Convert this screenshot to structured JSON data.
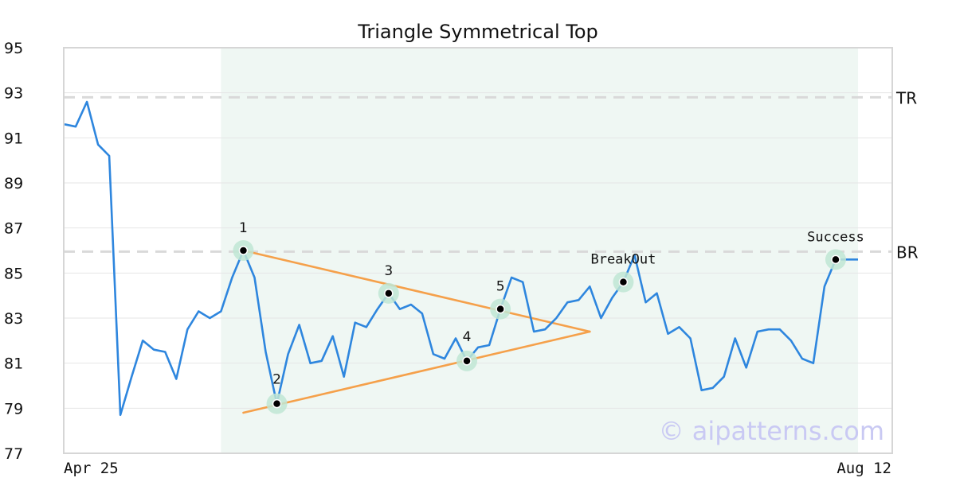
{
  "chart_data": {
    "type": "line",
    "title": "Triangle Symmetrical Top",
    "ylim": [
      77,
      95
    ],
    "yticks": [
      "77",
      "79",
      "81",
      "83",
      "85",
      "87",
      "89",
      "91",
      "93",
      "95"
    ],
    "x_start_label": "Apr 25",
    "x_end_label": "Aug 12",
    "grid": true,
    "series": [
      {
        "values": [
          91.6,
          91.5,
          92.6,
          90.7,
          90.2,
          78.7,
          80.4,
          82.0,
          81.6,
          81.5,
          80.3,
          82.5,
          83.3,
          83.0,
          83.3,
          84.8,
          86.0,
          84.8,
          81.5,
          79.2,
          81.4,
          82.7,
          81.0,
          81.1,
          82.2,
          80.4,
          82.8,
          82.6,
          83.4,
          84.1,
          83.4,
          83.6,
          83.2,
          81.4,
          81.2,
          82.1,
          81.1,
          81.7,
          81.8,
          83.4,
          84.8,
          84.6,
          82.4,
          82.5,
          83.0,
          83.7,
          83.8,
          84.4,
          83.0,
          83.9,
          84.6,
          85.8,
          83.7,
          84.1,
          82.3,
          82.6,
          82.1,
          79.8,
          79.9,
          80.4,
          82.1,
          80.8,
          82.4,
          82.5,
          82.5,
          82.0,
          81.2,
          81.0,
          84.4,
          85.6,
          85.6,
          85.6
        ]
      }
    ],
    "pattern_region": {
      "start_index": 14,
      "end_index": 71
    },
    "levels": [
      {
        "label": "TR",
        "value": 92.8
      },
      {
        "label": "BR",
        "value": 85.95
      }
    ],
    "trendlines": [
      {
        "from": {
          "index": 16,
          "value": 86.0
        },
        "to": {
          "index": 47,
          "value": 82.4
        }
      },
      {
        "from": {
          "index": 16,
          "value": 78.8
        },
        "to": {
          "index": 47,
          "value": 82.4
        }
      }
    ],
    "points": [
      {
        "label": "1",
        "index": 16,
        "value": 86.0
      },
      {
        "label": "2",
        "index": 19,
        "value": 79.2
      },
      {
        "label": "3",
        "index": 29,
        "value": 84.1
      },
      {
        "label": "4",
        "index": 36,
        "value": 81.1
      },
      {
        "label": "5",
        "index": 39,
        "value": 83.4
      },
      {
        "label": "BreakOut",
        "index": 50,
        "value": 84.6
      },
      {
        "label": "Success",
        "index": 69,
        "value": 85.6
      }
    ],
    "colors": {
      "line": "#2e86de",
      "trend": "#f5a04a",
      "region": "#eff7f3",
      "marker_halo": "#bfe6d3",
      "marker": "#000000",
      "level": "#d9d9d9",
      "grid": "#e6e6e6",
      "frame": "#d6d6d6"
    },
    "watermark": "© aipatterns.com"
  }
}
